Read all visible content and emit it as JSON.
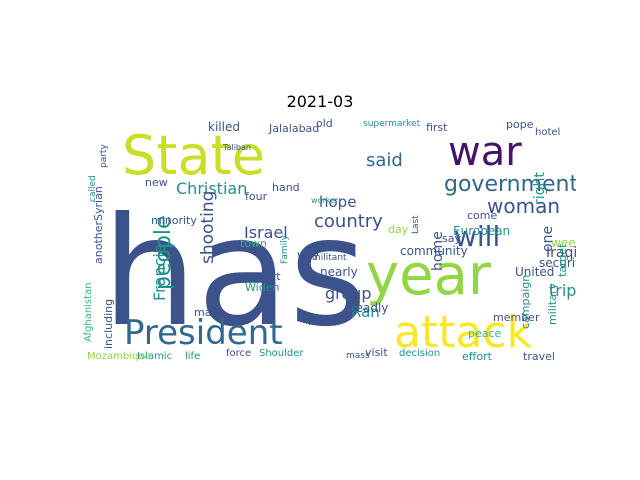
{
  "title": "2021-03",
  "colors": {
    "purple": "#44146b",
    "indigo": "#3b528b",
    "blue": "#31688e",
    "teal": "#21918c",
    "green": "#35b779",
    "lime": "#90d743",
    "yellow": "#c8df25",
    "bright_yellow": "#fde725"
  },
  "words": [
    {
      "text": "has",
      "color": "indigo"
    },
    {
      "text": "State",
      "color": "yellow"
    },
    {
      "text": "war",
      "color": "purple"
    },
    {
      "text": "year",
      "color": "lime"
    },
    {
      "text": "President",
      "color": "blue"
    },
    {
      "text": "attack",
      "color": "bright_yellow"
    },
    {
      "text": "government",
      "color": "blue"
    },
    {
      "text": "woman",
      "color": "indigo"
    },
    {
      "text": "will",
      "color": "indigo"
    },
    {
      "text": "people",
      "color": "teal"
    },
    {
      "text": "Christian",
      "color": "teal"
    },
    {
      "text": "country",
      "color": "indigo"
    },
    {
      "text": "said",
      "color": "blue"
    },
    {
      "text": "hope",
      "color": "indigo"
    },
    {
      "text": "shooting",
      "color": "indigo"
    },
    {
      "text": "Francis",
      "color": "teal"
    },
    {
      "text": "Israel",
      "color": "indigo"
    },
    {
      "text": "group",
      "color": "indigo"
    },
    {
      "text": "Ran",
      "color": "teal"
    },
    {
      "text": "killed",
      "color": "indigo"
    },
    {
      "text": "Jalalabad",
      "color": "indigo"
    },
    {
      "text": "old",
      "color": "indigo"
    },
    {
      "text": "first",
      "color": "indigo"
    },
    {
      "text": "pope",
      "color": "indigo"
    },
    {
      "text": "supermarket",
      "color": "teal"
    },
    {
      "text": "hotel",
      "color": "indigo"
    },
    {
      "text": "Iraqi",
      "color": "indigo"
    },
    {
      "text": "European",
      "color": "teal"
    },
    {
      "text": "week",
      "color": "lime"
    },
    {
      "text": "right",
      "color": "teal"
    },
    {
      "text": "home",
      "color": "indigo"
    },
    {
      "text": "come",
      "color": "indigo"
    },
    {
      "text": "one",
      "color": "indigo"
    },
    {
      "text": "security",
      "color": "indigo"
    },
    {
      "text": "military",
      "color": "teal"
    },
    {
      "text": "target",
      "color": "teal"
    },
    {
      "text": "say",
      "color": "indigo"
    },
    {
      "text": "community",
      "color": "indigo"
    },
    {
      "text": "United",
      "color": "indigo"
    },
    {
      "text": "trip",
      "color": "teal"
    },
    {
      "text": "campaign",
      "color": "teal"
    },
    {
      "text": "member",
      "color": "indigo"
    },
    {
      "text": "peace",
      "color": "green"
    },
    {
      "text": "nearly",
      "color": "indigo"
    },
    {
      "text": "deadly",
      "color": "indigo"
    },
    {
      "text": "left",
      "color": "indigo"
    },
    {
      "text": "Widen",
      "color": "teal"
    },
    {
      "text": "start",
      "color": "indigo"
    },
    {
      "text": "may",
      "color": "indigo"
    },
    {
      "text": "four",
      "color": "indigo"
    },
    {
      "text": "hand",
      "color": "indigo"
    },
    {
      "text": "new",
      "color": "indigo"
    },
    {
      "text": "minority",
      "color": "indigo"
    },
    {
      "text": "town",
      "color": "green"
    },
    {
      "text": "way",
      "color": "indigo"
    },
    {
      "text": "Afghanistan",
      "color": "green"
    },
    {
      "text": "anotherSyrian",
      "color": "indigo"
    },
    {
      "text": "including",
      "color": "indigo"
    },
    {
      "text": "party",
      "color": "indigo"
    },
    {
      "text": "called",
      "color": "teal"
    },
    {
      "text": "Taliban",
      "color": "indigo"
    },
    {
      "text": "worker",
      "color": "teal"
    },
    {
      "text": "militant",
      "color": "indigo"
    },
    {
      "text": "Islamic",
      "color": "teal"
    },
    {
      "text": "life",
      "color": "teal"
    },
    {
      "text": "force",
      "color": "indigo"
    },
    {
      "text": "Shoulder",
      "color": "teal"
    },
    {
      "text": "mass",
      "color": "indigo"
    },
    {
      "text": "visit",
      "color": "indigo"
    },
    {
      "text": "decision",
      "color": "teal"
    },
    {
      "text": "effort",
      "color": "teal"
    },
    {
      "text": "travel",
      "color": "indigo"
    },
    {
      "text": "Mozambique",
      "color": "lime"
    },
    {
      "text": "day",
      "color": "lime"
    },
    {
      "text": "Family",
      "color": "teal"
    },
    {
      "text": "Last",
      "color": "indigo"
    }
  ]
}
